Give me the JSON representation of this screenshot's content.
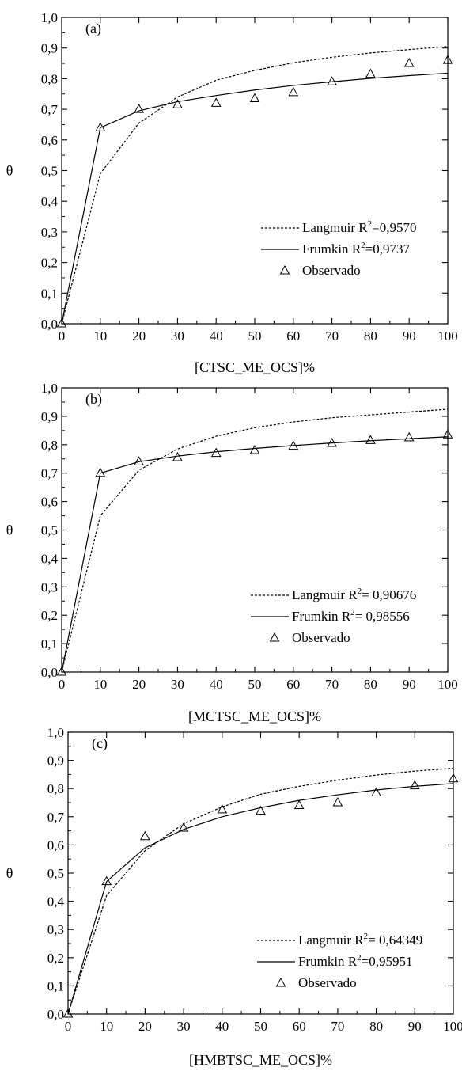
{
  "chart_data": [
    {
      "type": "line",
      "panel_label": "(a)",
      "xlabel": "[CTSC_ME_OCS]%",
      "ylabel": "θ",
      "xlim": [
        0,
        100
      ],
      "ylim": [
        0,
        1.0
      ],
      "xticks": [
        "0",
        "10",
        "20",
        "30",
        "40",
        "50",
        "60",
        "70",
        "80",
        "90",
        "100"
      ],
      "yticks": [
        "0,0",
        "0,1",
        "0,2",
        "0,3",
        "0,4",
        "0,5",
        "0,6",
        "0,7",
        "0,8",
        "0,9",
        "1,0"
      ],
      "grid": false,
      "legend_position": "lower-right",
      "series": [
        {
          "name": "Langmuir",
          "r2_label": "=0,9570",
          "style": "dashed",
          "x": [
            0,
            10,
            20,
            30,
            40,
            50,
            60,
            70,
            80,
            90,
            100
          ],
          "y": [
            0.0,
            0.49,
            0.655,
            0.74,
            0.795,
            0.827,
            0.852,
            0.87,
            0.884,
            0.895,
            0.905
          ]
        },
        {
          "name": "Frumkin",
          "r2_label": "=0,9737",
          "style": "solid",
          "x": [
            0,
            10,
            20,
            30,
            40,
            50,
            60,
            70,
            80,
            90,
            100
          ],
          "y": [
            0.0,
            0.64,
            0.695,
            0.725,
            0.745,
            0.763,
            0.778,
            0.79,
            0.801,
            0.81,
            0.818
          ]
        },
        {
          "name": "Observado",
          "style": "markers",
          "x": [
            0,
            10,
            20,
            30,
            40,
            50,
            60,
            70,
            80,
            90,
            100
          ],
          "y": [
            0.0,
            0.64,
            0.7,
            0.715,
            0.72,
            0.735,
            0.755,
            0.79,
            0.815,
            0.85,
            0.86
          ]
        }
      ]
    },
    {
      "type": "line",
      "panel_label": "(b)",
      "xlabel": "[MCTSC_ME_OCS]%",
      "ylabel": "θ",
      "xlim": [
        0,
        100
      ],
      "ylim": [
        0,
        1.0
      ],
      "xticks": [
        "0",
        "10",
        "20",
        "30",
        "40",
        "50",
        "60",
        "70",
        "80",
        "90",
        "100"
      ],
      "yticks": [
        "0,0",
        "0,1",
        "0,2",
        "0,3",
        "0,4",
        "0,5",
        "0,6",
        "0,7",
        "0,8",
        "0,9",
        "1,0"
      ],
      "grid": false,
      "legend_position": "lower-right",
      "series": [
        {
          "name": "Langmuir",
          "r2_label": "= 0,90676",
          "style": "dashed",
          "x": [
            0,
            10,
            20,
            30,
            40,
            50,
            60,
            70,
            80,
            90,
            100
          ],
          "y": [
            0.0,
            0.55,
            0.71,
            0.785,
            0.83,
            0.86,
            0.88,
            0.895,
            0.905,
            0.915,
            0.925
          ]
        },
        {
          "name": "Frumkin",
          "r2_label": "= 0,98556",
          "style": "solid",
          "x": [
            0,
            10,
            20,
            30,
            40,
            50,
            60,
            70,
            80,
            90,
            100
          ],
          "y": [
            0.0,
            0.7,
            0.74,
            0.76,
            0.775,
            0.787,
            0.797,
            0.806,
            0.814,
            0.821,
            0.828
          ]
        },
        {
          "name": "Observado",
          "style": "markers",
          "x": [
            0,
            10,
            20,
            30,
            40,
            50,
            60,
            70,
            80,
            90,
            100
          ],
          "y": [
            0.0,
            0.7,
            0.74,
            0.755,
            0.77,
            0.78,
            0.795,
            0.805,
            0.815,
            0.825,
            0.835
          ]
        }
      ]
    },
    {
      "type": "line",
      "panel_label": "(c)",
      "xlabel": "[HMBTSC_ME_OCS]%",
      "ylabel": "θ",
      "xlim": [
        0,
        100
      ],
      "ylim": [
        0,
        1.0
      ],
      "xticks": [
        "0",
        "10",
        "20",
        "30",
        "40",
        "50",
        "60",
        "70",
        "80",
        "90",
        "100"
      ],
      "yticks": [
        "0,0",
        "0,1",
        "0,2",
        "0,3",
        "0,4",
        "0,5",
        "0,6",
        "0,7",
        "0,8",
        "0,9",
        "1,0"
      ],
      "grid": false,
      "legend_position": "lower-right",
      "series": [
        {
          "name": "Langmuir",
          "r2_label": "= 0,64349",
          "style": "dashed",
          "x": [
            0,
            10,
            20,
            30,
            40,
            50,
            60,
            70,
            80,
            90,
            100
          ],
          "y": [
            0.0,
            0.42,
            0.58,
            0.675,
            0.735,
            0.78,
            0.808,
            0.83,
            0.848,
            0.862,
            0.872
          ]
        },
        {
          "name": "Frumkin",
          "r2_label": "=0,95951",
          "style": "solid",
          "x": [
            0,
            10,
            20,
            30,
            40,
            50,
            60,
            70,
            80,
            90,
            100
          ],
          "y": [
            0.0,
            0.47,
            0.59,
            0.655,
            0.7,
            0.732,
            0.758,
            0.778,
            0.795,
            0.808,
            0.818
          ]
        },
        {
          "name": "Observado",
          "style": "markers",
          "x": [
            0,
            10,
            20,
            30,
            40,
            50,
            60,
            70,
            80,
            90,
            100
          ],
          "y": [
            0.0,
            0.47,
            0.63,
            0.66,
            0.725,
            0.72,
            0.74,
            0.75,
            0.785,
            0.81,
            0.835
          ]
        }
      ]
    }
  ]
}
